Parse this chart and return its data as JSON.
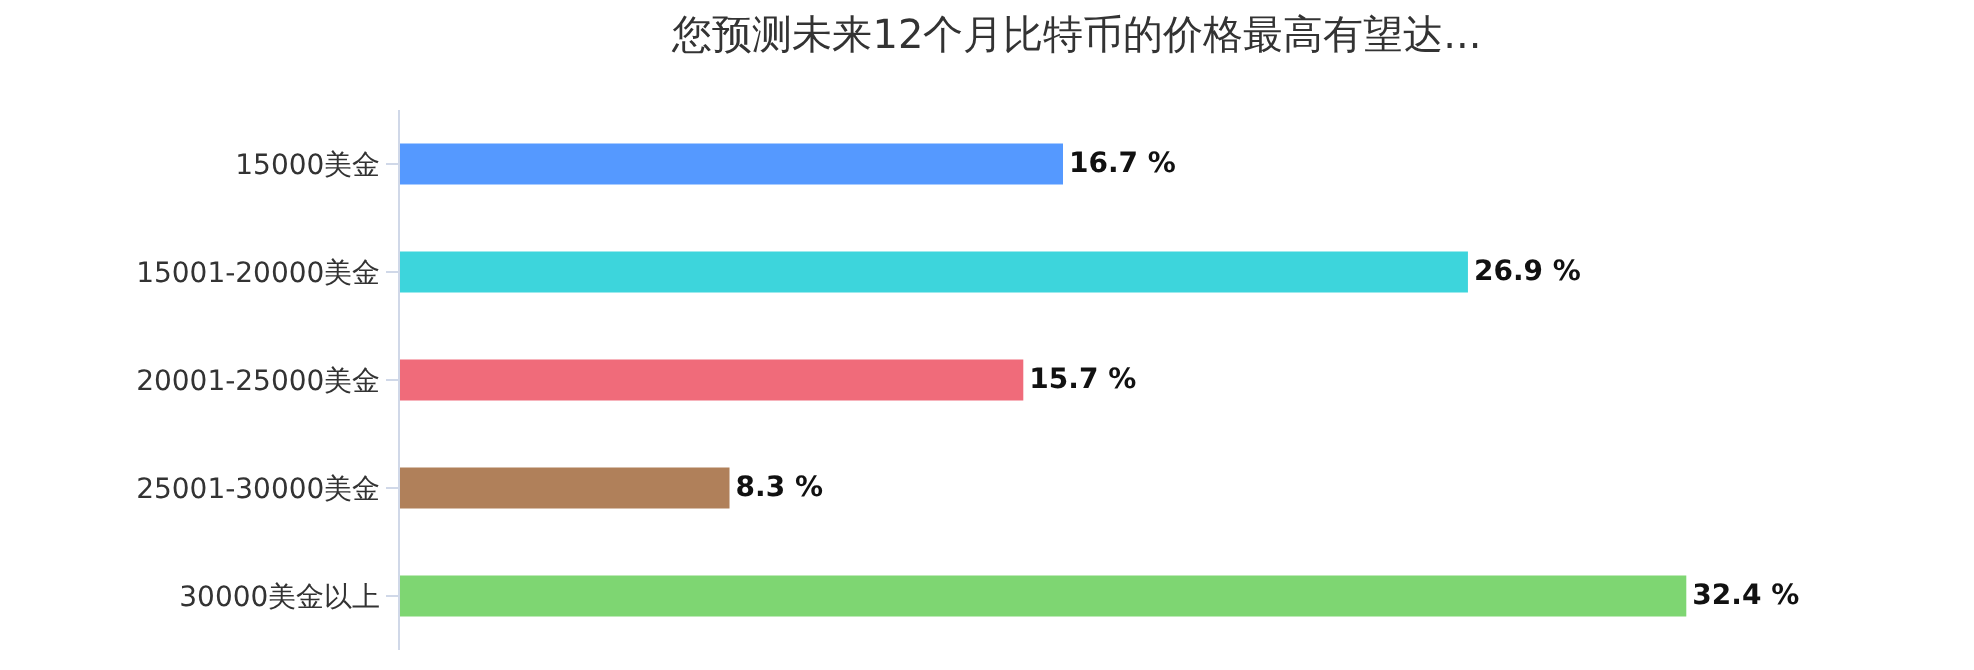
{
  "chart_data": {
    "type": "bar",
    "orientation": "horizontal",
    "title": "您预测未来12个月比特币的价格最高有望达...",
    "categories": [
      "15000美金",
      "15001-20000美金",
      "20001-25000美金",
      "25001-30000美金",
      "30000美金以上"
    ],
    "values": [
      16.7,
      26.9,
      15.7,
      8.3,
      32.4
    ],
    "colors": [
      "#5599ff",
      "#3dd5dc",
      "#f06b7a",
      "#b0805a",
      "#7ed672"
    ],
    "value_labels": [
      "16.7 %",
      "26.9 %",
      "15.7 %",
      "8.3 %",
      "32.4 %"
    ]
  }
}
